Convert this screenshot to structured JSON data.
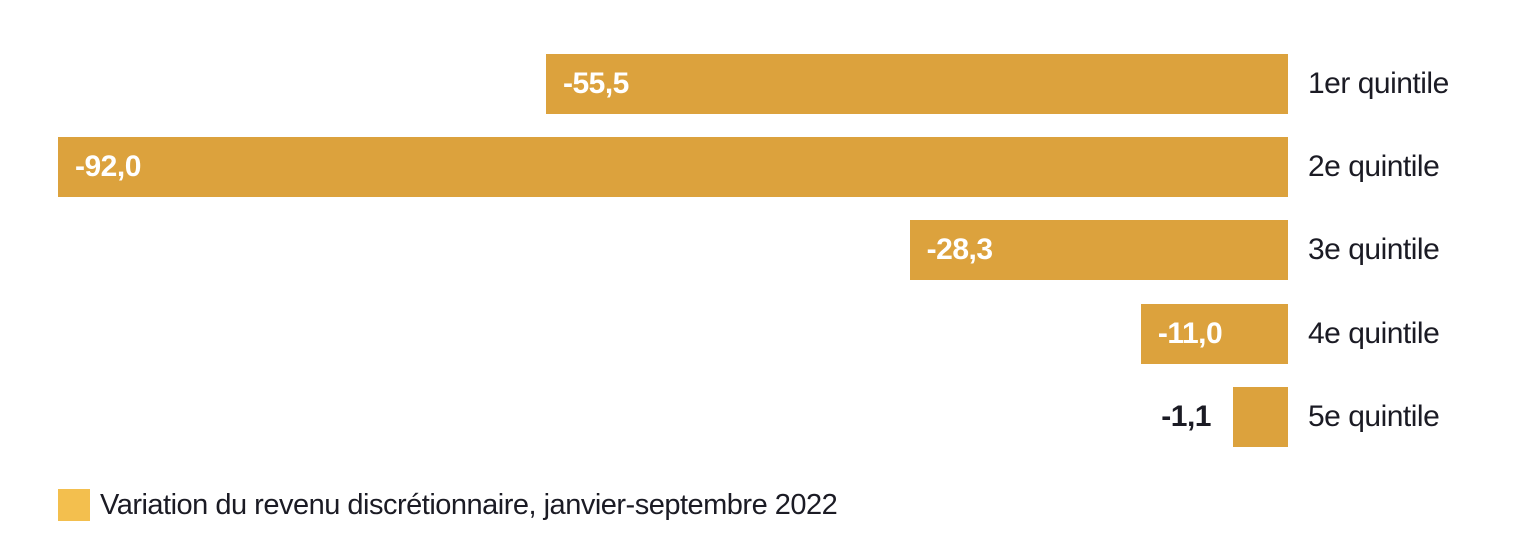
{
  "chart_data": {
    "type": "bar",
    "orientation": "horizontal",
    "baseline": "right",
    "title": "",
    "xlabel": "",
    "ylabel": "",
    "xlim": [
      -92,
      0
    ],
    "grid": false,
    "legend_position": "bottom-left",
    "categories": [
      "1er quintile",
      "2e quintile",
      "3e quintile",
      "4e quintile",
      "5e quintile"
    ],
    "values": [
      -55.5,
      -92.0,
      -28.3,
      -11.0,
      -1.1
    ],
    "value_labels": [
      "-55,5",
      "-92,0",
      "-28,3",
      "-11,0",
      "-1,1"
    ],
    "series_name": "Variation du revenu discrétionnaire, janvier-septembre 2022",
    "colors": {
      "bar": "#DCA23D",
      "legend_swatch": "#F3BF4E",
      "text_dark": "#1B1B24",
      "value_label_inside": "#FFFFFF",
      "background": "#FFFFFF"
    }
  },
  "legend": {
    "label": "Variation du revenu discrétionnaire, janvier-septembre 2022"
  }
}
